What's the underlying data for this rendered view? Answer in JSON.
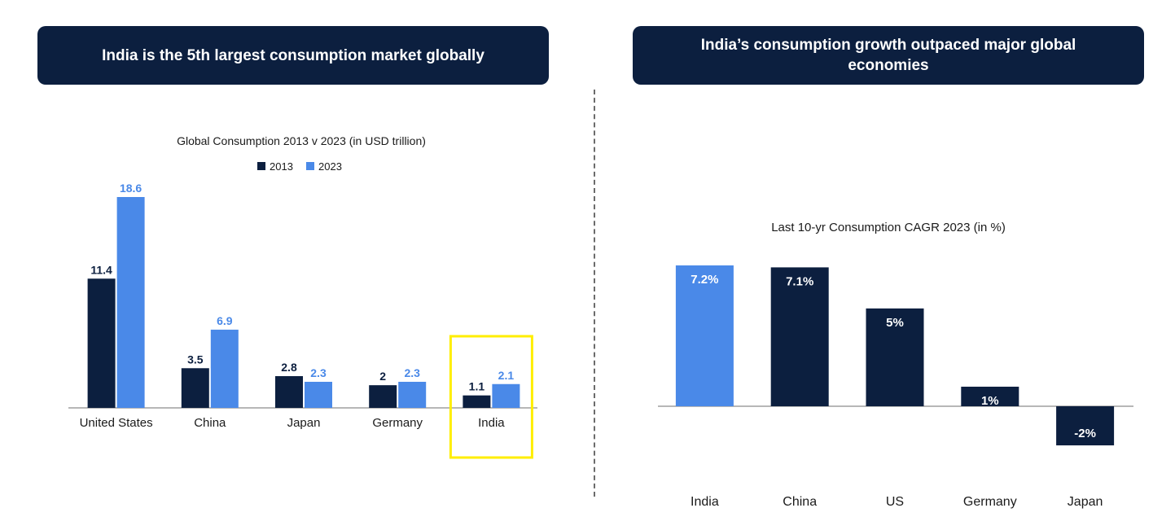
{
  "left_panel": {
    "header": "India is the 5th largest consumption market globally"
  },
  "right_panel": {
    "header": "India’s consumption growth outpaced major global economies"
  },
  "colors": {
    "dark": "#0c1f3f",
    "light": "#4a89e8",
    "highlight": "#ffee00",
    "axis": "#8c8c8c"
  },
  "chart_data": [
    {
      "type": "bar",
      "title": "Global Consumption  2013 v 2023 (in USD trillion)",
      "categories": [
        "United States",
        "China",
        "Japan",
        "Germany",
        "India"
      ],
      "series": [
        {
          "name": "2013",
          "values": [
            11.4,
            3.5,
            2.8,
            2,
            1.1
          ],
          "labels": [
            "11.4",
            "3.5",
            "2.8",
            "2",
            "1.1"
          ]
        },
        {
          "name": "2023",
          "values": [
            18.6,
            6.9,
            2.3,
            2.3,
            2.1
          ],
          "labels": [
            "18.6",
            "6.9",
            "2.3",
            "2.3",
            "2.1"
          ]
        }
      ],
      "ylim": [
        0,
        18.6
      ],
      "legend": "top",
      "highlight_category": "India"
    },
    {
      "type": "bar",
      "title": "Last 10-yr Consumption CAGR 2023 (in %)",
      "categories": [
        "India",
        "China",
        "US",
        "Germany",
        "Japan"
      ],
      "values": [
        7.2,
        7.1,
        5,
        1,
        -2
      ],
      "labels": [
        "7.2%",
        "7.1%",
        "5%",
        "1%",
        "-2%"
      ],
      "ylim": [
        -2,
        7.2
      ]
    }
  ]
}
